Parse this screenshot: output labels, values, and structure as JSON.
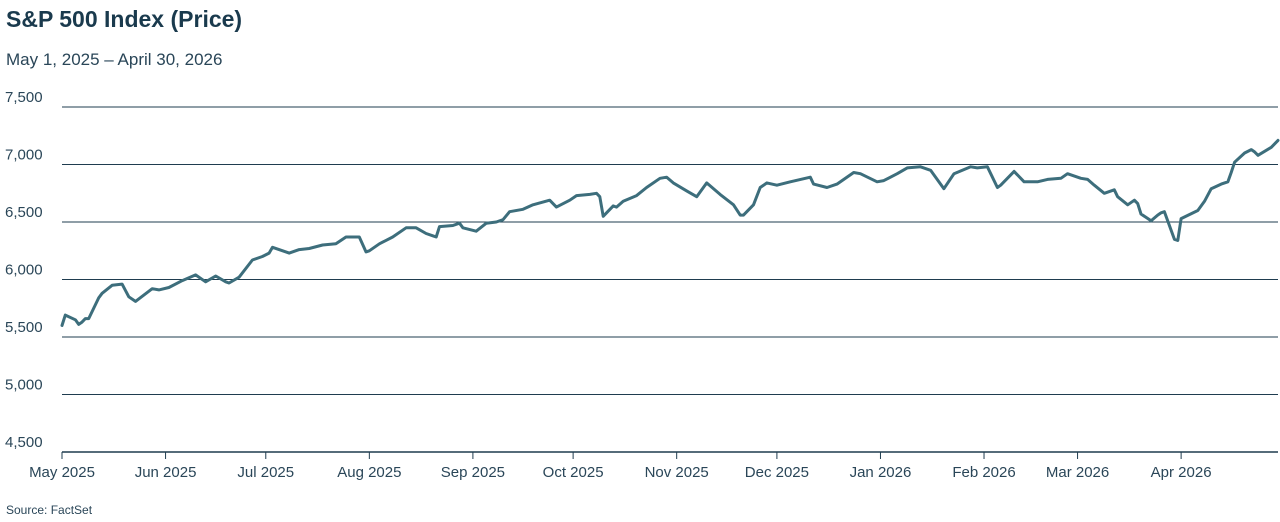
{
  "chart_data": {
    "type": "line",
    "title": "S&P 500 Index (Price)",
    "subtitle": "May 1, 2025 – April 30, 2026",
    "source": "Source: FactSet",
    "ylim": [
      4500,
      7500
    ],
    "yticks": [
      4500,
      5000,
      5500,
      6000,
      6500,
      7000,
      7500
    ],
    "ytick_labels": [
      "4,500",
      "5,000",
      "5,500",
      "6,000",
      "6,500",
      "7,000",
      "7,500"
    ],
    "xlim": [
      "2025-05-01",
      "2026-04-30"
    ],
    "xticks": [
      "2025-05-01",
      "2025-06-01",
      "2025-07-01",
      "2025-08-01",
      "2025-09-01",
      "2025-10-01",
      "2025-11-01",
      "2025-12-01",
      "2026-01-01",
      "2026-02-01",
      "2026-03-01",
      "2026-04-01"
    ],
    "xtick_labels": [
      "May 2025",
      "Jun 2025",
      "Jul 2025",
      "Aug 2025",
      "Sep 2025",
      "Oct 2025",
      "Nov 2025",
      "Dec 2025",
      "Jan 2026",
      "Feb 2026",
      "Mar 2026",
      "Apr 2026"
    ],
    "grid": "horizontal",
    "line_color": "#3d6e7c",
    "grid_color": "#1f3c4f",
    "series": [
      {
        "x": [
          "2025-05-01",
          "2025-05-02",
          "2025-05-05",
          "2025-05-06",
          "2025-05-07",
          "2025-05-08",
          "2025-05-09",
          "2025-05-12",
          "2025-05-13",
          "2025-05-16",
          "2025-05-19",
          "2025-05-21",
          "2025-05-23",
          "2025-05-28",
          "2025-05-30",
          "2025-06-02",
          "2025-06-06",
          "2025-06-10",
          "2025-06-13",
          "2025-06-16",
          "2025-06-19",
          "2025-06-20",
          "2025-06-23",
          "2025-06-27",
          "2025-06-30",
          "2025-07-02",
          "2025-07-03",
          "2025-07-08",
          "2025-07-11",
          "2025-07-14",
          "2025-07-18",
          "2025-07-22",
          "2025-07-25",
          "2025-07-29",
          "2025-07-31",
          "2025-08-01",
          "2025-08-04",
          "2025-08-06",
          "2025-08-08",
          "2025-08-12",
          "2025-08-15",
          "2025-08-18",
          "2025-08-20",
          "2025-08-21",
          "2025-08-22",
          "2025-08-26",
          "2025-08-28",
          "2025-08-29",
          "2025-09-02",
          "2025-09-05",
          "2025-09-08",
          "2025-09-10",
          "2025-09-12",
          "2025-09-16",
          "2025-09-19",
          "2025-09-24",
          "2025-09-26",
          "2025-09-30",
          "2025-10-02",
          "2025-10-06",
          "2025-10-08",
          "2025-10-09",
          "2025-10-10",
          "2025-10-13",
          "2025-10-14",
          "2025-10-16",
          "2025-10-20",
          "2025-10-23",
          "2025-10-27",
          "2025-10-29",
          "2025-10-31",
          "2025-11-04",
          "2025-11-07",
          "2025-11-10",
          "2025-11-14",
          "2025-11-18",
          "2025-11-20",
          "2025-11-21",
          "2025-11-24",
          "2025-11-26",
          "2025-11-28",
          "2025-12-01",
          "2025-12-05",
          "2025-12-11",
          "2025-12-12",
          "2025-12-16",
          "2025-12-19",
          "2025-12-24",
          "2025-12-26",
          "2025-12-31",
          "2026-01-02",
          "2026-01-06",
          "2026-01-09",
          "2026-01-13",
          "2026-01-16",
          "2026-01-20",
          "2026-01-23",
          "2026-01-28",
          "2026-01-30",
          "2026-02-02",
          "2026-02-05",
          "2026-02-06",
          "2026-02-10",
          "2026-02-13",
          "2026-02-17",
          "2026-02-20",
          "2026-02-24",
          "2026-02-26",
          "2026-03-02",
          "2026-03-04",
          "2026-03-06",
          "2026-03-09",
          "2026-03-12",
          "2026-03-13",
          "2026-03-16",
          "2026-03-18",
          "2026-03-19",
          "2026-03-20",
          "2026-03-23",
          "2026-03-25",
          "2026-03-26",
          "2026-03-27",
          "2026-03-30",
          "2026-03-31",
          "2026-04-01",
          "2026-04-06",
          "2026-04-08",
          "2026-04-10",
          "2026-04-13",
          "2026-04-15",
          "2026-04-16",
          "2026-04-17",
          "2026-04-20",
          "2026-04-22",
          "2026-04-23",
          "2026-04-24",
          "2026-04-28",
          "2026-04-29",
          "2026-04-30"
        ],
        "y": [
          5600,
          5690,
          5650,
          5610,
          5630,
          5660,
          5660,
          5840,
          5880,
          5950,
          5960,
          5850,
          5810,
          5920,
          5910,
          5930,
          5990,
          6040,
          5980,
          6030,
          5980,
          5970,
          6020,
          6170,
          6200,
          6230,
          6280,
          6230,
          6260,
          6270,
          6300,
          6310,
          6370,
          6370,
          6240,
          6250,
          6310,
          6340,
          6370,
          6450,
          6450,
          6400,
          6380,
          6370,
          6460,
          6470,
          6490,
          6450,
          6420,
          6490,
          6500,
          6520,
          6590,
          6610,
          6650,
          6690,
          6630,
          6690,
          6730,
          6740,
          6750,
          6720,
          6550,
          6640,
          6630,
          6680,
          6730,
          6800,
          6880,
          6890,
          6840,
          6770,
          6720,
          6840,
          6740,
          6650,
          6560,
          6560,
          6650,
          6800,
          6840,
          6820,
          6850,
          6890,
          6830,
          6800,
          6830,
          6930,
          6920,
          6850,
          6860,
          6920,
          6970,
          6980,
          6950,
          6790,
          6920,
          6980,
          6970,
          6980,
          6800,
          6820,
          6940,
          6850,
          6850,
          6870,
          6880,
          6920,
          6880,
          6870,
          6820,
          6750,
          6780,
          6720,
          6650,
          6690,
          6660,
          6570,
          6510,
          6560,
          6580,
          6590,
          6350,
          6340,
          6530,
          6600,
          6680,
          6790,
          6830,
          6850,
          6930,
          7020,
          7100,
          7130,
          7110,
          7080,
          7150,
          7180,
          7210
        ]
      }
    ]
  }
}
